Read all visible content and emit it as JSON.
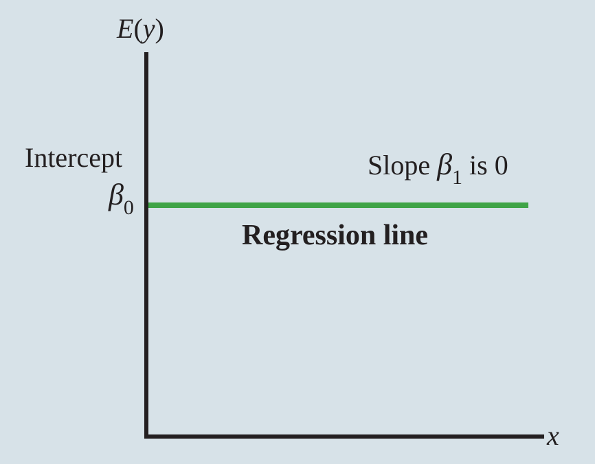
{
  "diagram": {
    "y_axis_label": {
      "func": "E",
      "open": "(",
      "var": "y",
      "close": ")"
    },
    "x_axis_label": "x",
    "intercept": {
      "text": "Intercept",
      "symbol": "β",
      "subscript": "0"
    },
    "slope": {
      "prefix": "Slope ",
      "symbol": "β",
      "subscript": "1",
      "suffix": " is 0"
    },
    "line_label": "Regression line",
    "colors": {
      "background": "#d7e2e8",
      "axis": "#231f20",
      "regression_line": "#3fa447"
    }
  }
}
